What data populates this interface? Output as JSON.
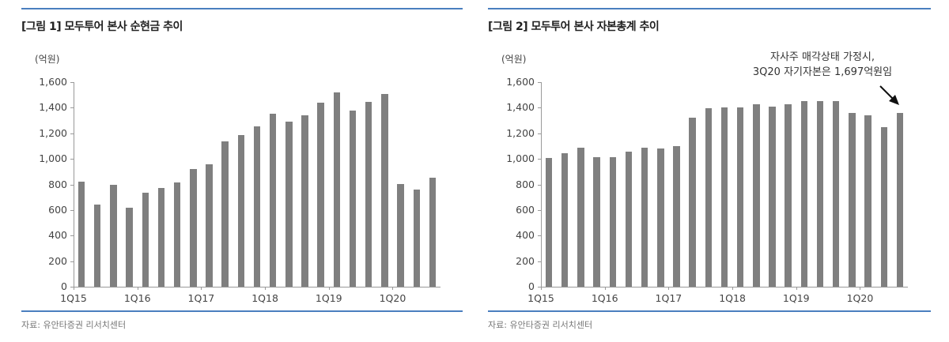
{
  "colors": {
    "rule": "#4a7fbf",
    "bar": "#7f7f7f",
    "axis": "#999999"
  },
  "figure1": {
    "title": "[그림 1] 모두투어 본사 순현금 추이",
    "unit": "(억원)",
    "source": "자료: 유안타증권 리서치센터"
  },
  "figure2": {
    "title": "[그림 2] 모두투어 본사 자본총계 추이",
    "unit": "(억원)",
    "source": "자료: 유안타증권 리서치센터",
    "annotation_line1": "자사주 매각상태 가정시,",
    "annotation_line2": "3Q20 자기자본은 1,697억원임"
  },
  "chart_data": [
    {
      "type": "bar",
      "title": "[그림 1] 모두투어 본사 순현금 추이",
      "xlabel": "",
      "ylabel": "(억원)",
      "ylim": [
        0,
        1600
      ],
      "yticks": [
        "0",
        "200",
        "400",
        "600",
        "800",
        "1,000",
        "1,200",
        "1,400",
        "1,600"
      ],
      "xtick_labels": [
        "1Q15",
        "1Q16",
        "1Q17",
        "1Q18",
        "1Q19",
        "1Q20"
      ],
      "grid": false,
      "legend": null,
      "categories": [
        "1Q15",
        "2Q15",
        "3Q15",
        "4Q15",
        "1Q16",
        "2Q16",
        "3Q16",
        "4Q16",
        "1Q17",
        "2Q17",
        "3Q17",
        "4Q17",
        "1Q18",
        "2Q18",
        "3Q18",
        "4Q18",
        "1Q19",
        "2Q19",
        "3Q19",
        "4Q19",
        "1Q20",
        "2Q20",
        "3Q20"
      ],
      "values": [
        820,
        640,
        795,
        620,
        735,
        770,
        815,
        920,
        955,
        1135,
        1185,
        1255,
        1350,
        1290,
        1340,
        1440,
        1520,
        1380,
        1445,
        1510,
        805,
        760,
        855
      ],
      "source": "자료: 유안타증권 리서치센터"
    },
    {
      "type": "bar",
      "title": "[그림 2] 모두투어 본사 자본총계 추이",
      "xlabel": "",
      "ylabel": "(억원)",
      "ylim": [
        0,
        1600
      ],
      "yticks": [
        "0",
        "200",
        "400",
        "600",
        "800",
        "1,000",
        "1,200",
        "1,400",
        "1,600"
      ],
      "xtick_labels": [
        "1Q15",
        "1Q16",
        "1Q17",
        "1Q18",
        "1Q19",
        "1Q20"
      ],
      "grid": false,
      "legend": null,
      "categories": [
        "1Q15",
        "2Q15",
        "3Q15",
        "4Q15",
        "1Q16",
        "2Q16",
        "3Q16",
        "4Q16",
        "1Q17",
        "2Q17",
        "3Q17",
        "4Q17",
        "1Q18",
        "2Q18",
        "3Q18",
        "4Q18",
        "1Q19",
        "2Q19",
        "3Q19",
        "4Q19",
        "1Q20",
        "2Q20",
        "3Q20"
      ],
      "values": [
        1010,
        1045,
        1085,
        1015,
        1015,
        1055,
        1090,
        1080,
        1100,
        1325,
        1395,
        1405,
        1405,
        1425,
        1410,
        1430,
        1450,
        1450,
        1450,
        1360,
        1340,
        1250,
        1360
      ],
      "annotations": [
        "자사주 매각상태 가정시,",
        "3Q20 자기자본은 1,697억원임"
      ],
      "source": "자료: 유안타증권 리서치센터"
    }
  ]
}
